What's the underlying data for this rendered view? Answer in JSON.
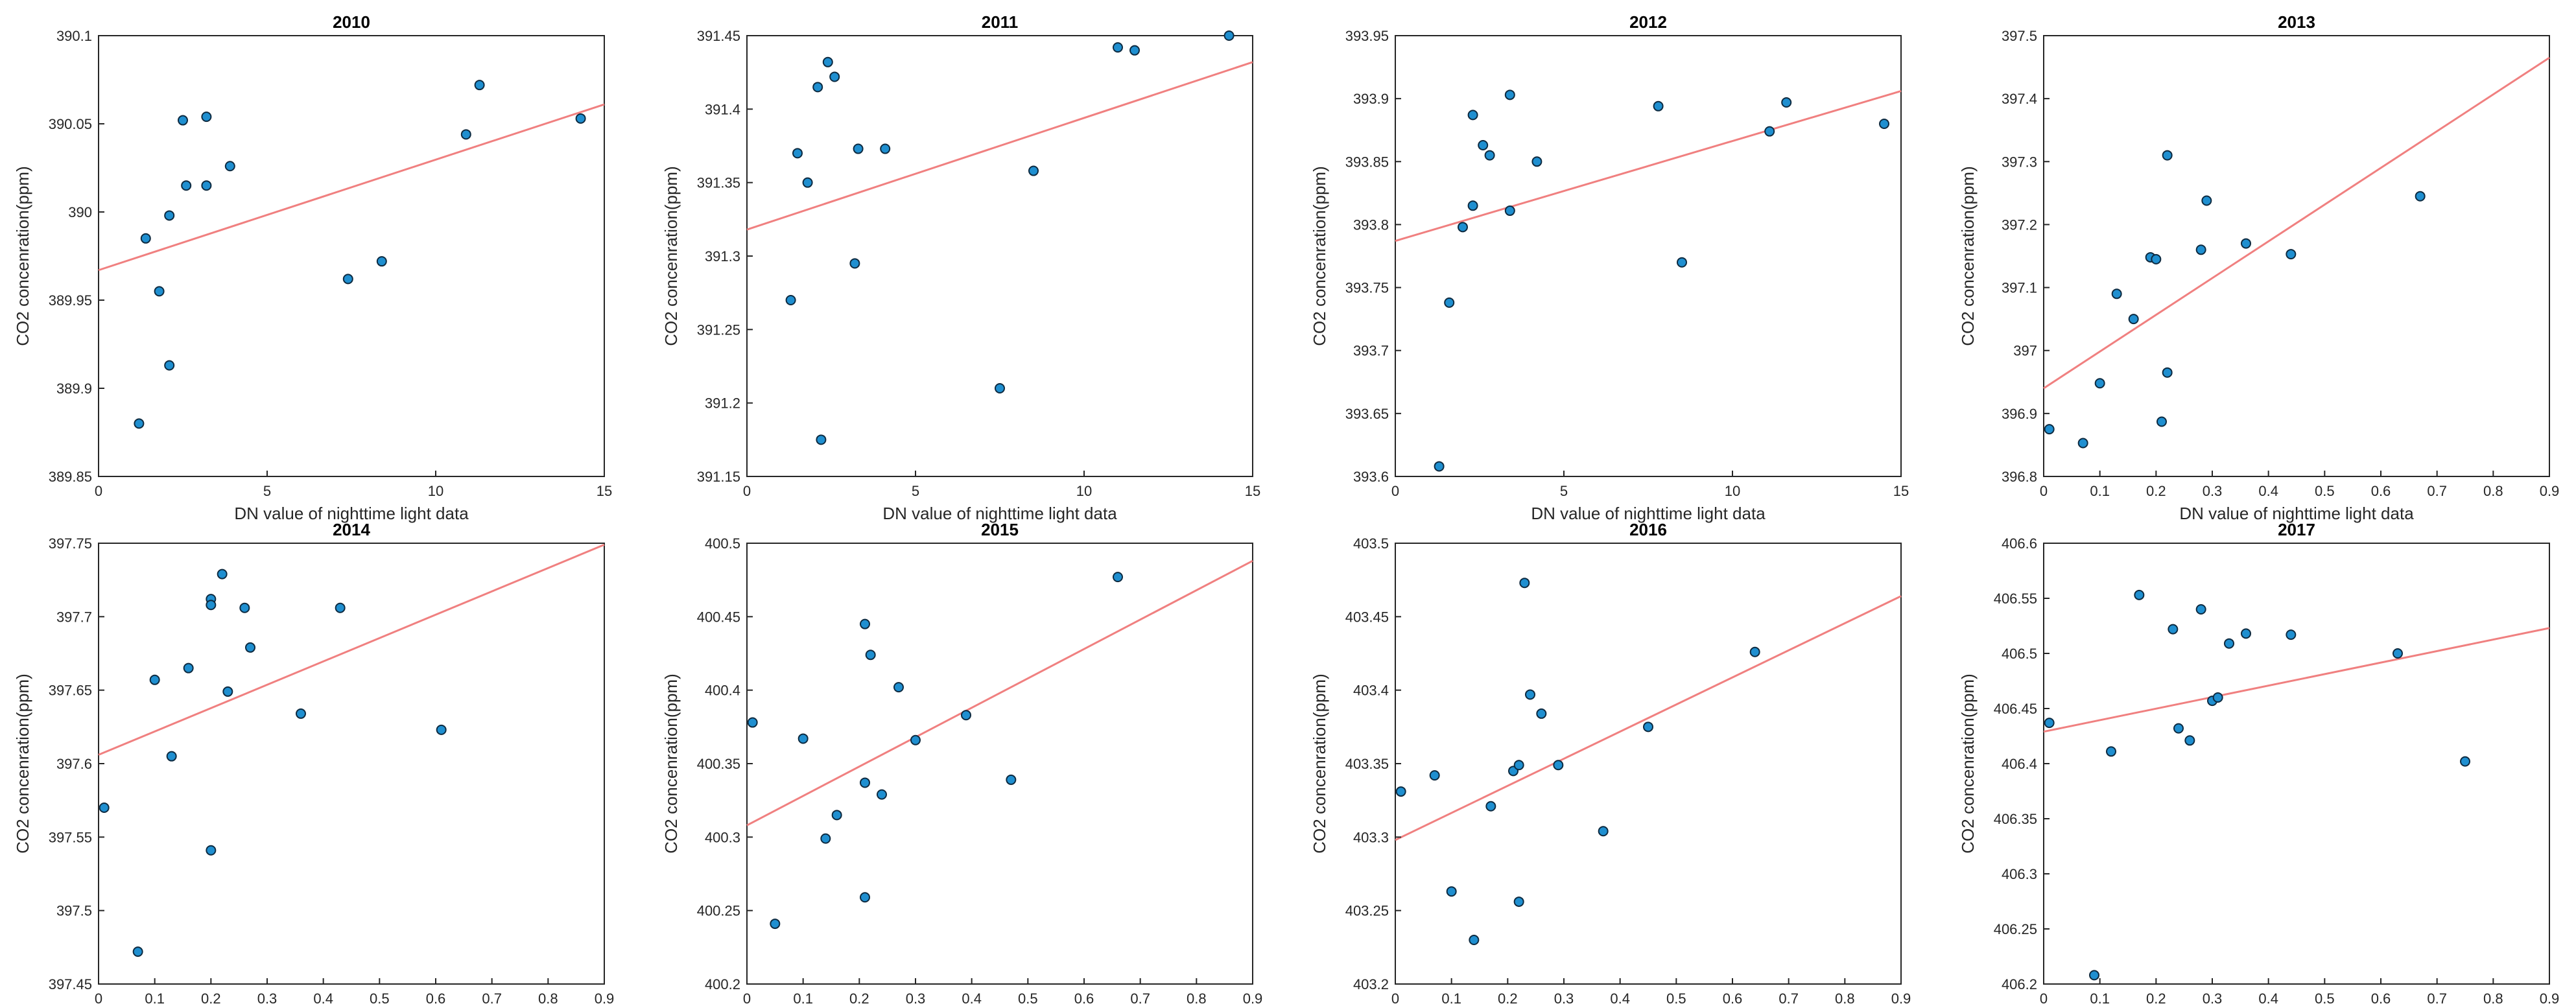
{
  "colors": {
    "point_fill": "#1f8fd0",
    "point_stroke": "#0d2a40",
    "fit_line": "#f08080",
    "axis": "#262626",
    "background": "#ffffff"
  },
  "chart_data": [
    {
      "type": "scatter",
      "title": "2010",
      "xlabel": "DN value of nighttime light data",
      "ylabel": "CO2 concenration(ppm)",
      "xlim": [
        0,
        15
      ],
      "ylim": [
        389.85,
        390.1
      ],
      "xticks": [
        0,
        5,
        10,
        15
      ],
      "xtick_labels": [
        "0",
        "5",
        "10",
        "15"
      ],
      "yticks": [
        389.85,
        389.9,
        389.95,
        390,
        390.05,
        390.1
      ],
      "ytick_labels": [
        "389.85",
        "389.9",
        "389.95",
        "390",
        "390.05",
        "390.1"
      ],
      "points": [
        [
          1.2,
          389.88
        ],
        [
          1.4,
          389.985
        ],
        [
          1.8,
          389.955
        ],
        [
          2.1,
          389.998
        ],
        [
          2.1,
          389.913
        ],
        [
          2.5,
          390.052
        ],
        [
          2.6,
          390.015
        ],
        [
          3.2,
          390.054
        ],
        [
          3.2,
          390.015
        ],
        [
          3.9,
          390.026
        ],
        [
          7.4,
          389.962
        ],
        [
          8.4,
          389.972
        ],
        [
          10.9,
          390.044
        ],
        [
          11.3,
          390.072
        ],
        [
          14.3,
          390.053
        ]
      ],
      "fit": [
        [
          0,
          389.967
        ],
        [
          15,
          390.061
        ]
      ]
    },
    {
      "type": "scatter",
      "title": "2011",
      "xlabel": "DN value of nighttime light data",
      "ylabel": "CO2 concenration(ppm)",
      "xlim": [
        0,
        15
      ],
      "ylim": [
        391.15,
        391.45
      ],
      "xticks": [
        0,
        5,
        10,
        15
      ],
      "xtick_labels": [
        "0",
        "5",
        "10",
        "15"
      ],
      "yticks": [
        391.15,
        391.2,
        391.25,
        391.3,
        391.35,
        391.4,
        391.45
      ],
      "ytick_labels": [
        "391.15",
        "391.2",
        "391.25",
        "391.3",
        "391.35",
        "391.4",
        "391.45"
      ],
      "points": [
        [
          1.3,
          391.27
        ],
        [
          1.5,
          391.37
        ],
        [
          1.8,
          391.35
        ],
        [
          2.1,
          391.415
        ],
        [
          2.2,
          391.175
        ],
        [
          2.4,
          391.432
        ],
        [
          2.6,
          391.422
        ],
        [
          3.2,
          391.295
        ],
        [
          3.3,
          391.373
        ],
        [
          4.1,
          391.373
        ],
        [
          7.5,
          391.21
        ],
        [
          8.5,
          391.358
        ],
        [
          11.0,
          391.442
        ],
        [
          11.5,
          391.44
        ],
        [
          14.3,
          391.45
        ]
      ],
      "fit": [
        [
          0,
          391.318
        ],
        [
          15,
          391.432
        ]
      ]
    },
    {
      "type": "scatter",
      "title": "2012",
      "xlabel": "DN value of nighttime light data",
      "ylabel": "CO2 concenration(ppm)",
      "xlim": [
        0,
        15
      ],
      "ylim": [
        393.6,
        393.95
      ],
      "xticks": [
        0,
        5,
        10,
        15
      ],
      "xtick_labels": [
        "0",
        "5",
        "10",
        "15"
      ],
      "yticks": [
        393.6,
        393.65,
        393.7,
        393.75,
        393.8,
        393.85,
        393.9,
        393.95
      ],
      "ytick_labels": [
        "393.6",
        "393.65",
        "393.7",
        "393.75",
        "393.8",
        "393.85",
        "393.9",
        "393.95"
      ],
      "points": [
        [
          1.3,
          393.608
        ],
        [
          1.6,
          393.738
        ],
        [
          2.0,
          393.798
        ],
        [
          2.3,
          393.815
        ],
        [
          2.3,
          393.887
        ],
        [
          2.6,
          393.863
        ],
        [
          2.8,
          393.855
        ],
        [
          3.4,
          393.903
        ],
        [
          3.4,
          393.811
        ],
        [
          4.2,
          393.85
        ],
        [
          7.8,
          393.894
        ],
        [
          8.5,
          393.77
        ],
        [
          11.1,
          393.874
        ],
        [
          11.6,
          393.897
        ],
        [
          14.5,
          393.88
        ]
      ],
      "fit": [
        [
          0,
          393.787
        ],
        [
          15,
          393.906
        ]
      ]
    },
    {
      "type": "scatter",
      "title": "2013",
      "xlabel": "DN value of nighttime light data",
      "ylabel": "CO2 concenration(ppm)",
      "xlim": [
        0,
        0.9
      ],
      "ylim": [
        396.8,
        397.5
      ],
      "xticks": [
        0,
        0.1,
        0.2,
        0.3,
        0.4,
        0.5,
        0.6,
        0.7,
        0.8,
        0.9
      ],
      "xtick_labels": [
        "0",
        "0.1",
        "0.2",
        "0.3",
        "0.4",
        "0.5",
        "0.6",
        "0.7",
        "0.8",
        "0.9"
      ],
      "yticks": [
        396.8,
        396.9,
        397,
        397.1,
        397.2,
        397.3,
        397.4,
        397.5
      ],
      "ytick_labels": [
        "396.8",
        "396.9",
        "397",
        "397.1",
        "397.2",
        "397.3",
        "397.4",
        "397.5"
      ],
      "points": [
        [
          0.01,
          396.875
        ],
        [
          0.07,
          396.853
        ],
        [
          0.1,
          396.948
        ],
        [
          0.13,
          397.09
        ],
        [
          0.16,
          397.05
        ],
        [
          0.19,
          397.148
        ],
        [
          0.2,
          397.145
        ],
        [
          0.21,
          396.887
        ],
        [
          0.22,
          396.965
        ],
        [
          0.22,
          397.31
        ],
        [
          0.28,
          397.16
        ],
        [
          0.29,
          397.238
        ],
        [
          0.36,
          397.17
        ],
        [
          0.44,
          397.153
        ],
        [
          0.67,
          397.245
        ]
      ],
      "fit": [
        [
          0,
          396.94
        ],
        [
          0.9,
          397.465
        ]
      ]
    },
    {
      "type": "scatter",
      "title": "2014",
      "xlabel": "DN value of nighttime light data",
      "ylabel": "CO2 concenration(ppm)",
      "xlim": [
        0,
        0.9
      ],
      "ylim": [
        397.45,
        397.75
      ],
      "xticks": [
        0,
        0.1,
        0.2,
        0.3,
        0.4,
        0.5,
        0.6,
        0.7,
        0.8,
        0.9
      ],
      "xtick_labels": [
        "0",
        "0.1",
        "0.2",
        "0.3",
        "0.4",
        "0.5",
        "0.6",
        "0.7",
        "0.8",
        "0.9"
      ],
      "yticks": [
        397.45,
        397.5,
        397.55,
        397.6,
        397.65,
        397.7,
        397.75
      ],
      "ytick_labels": [
        "397.45",
        "397.5",
        "397.55",
        "397.6",
        "397.65",
        "397.7",
        "397.75"
      ],
      "points": [
        [
          0.01,
          397.57
        ],
        [
          0.07,
          397.472
        ],
        [
          0.1,
          397.657
        ],
        [
          0.13,
          397.605
        ],
        [
          0.16,
          397.665
        ],
        [
          0.2,
          397.712
        ],
        [
          0.2,
          397.708
        ],
        [
          0.2,
          397.541
        ],
        [
          0.22,
          397.729
        ],
        [
          0.23,
          397.649
        ],
        [
          0.26,
          397.706
        ],
        [
          0.27,
          397.679
        ],
        [
          0.36,
          397.634
        ],
        [
          0.43,
          397.706
        ],
        [
          0.61,
          397.623
        ]
      ],
      "fit": [
        [
          0,
          397.606
        ],
        [
          0.9,
          397.749
        ]
      ]
    },
    {
      "type": "scatter",
      "title": "2015",
      "xlabel": "DN value of nighttime light data",
      "ylabel": "CO2 concenration(ppm)",
      "xlim": [
        0,
        0.9
      ],
      "ylim": [
        400.2,
        400.5
      ],
      "xticks": [
        0,
        0.1,
        0.2,
        0.3,
        0.4,
        0.5,
        0.6,
        0.7,
        0.8,
        0.9
      ],
      "xtick_labels": [
        "0",
        "0.1",
        "0.2",
        "0.3",
        "0.4",
        "0.5",
        "0.6",
        "0.7",
        "0.8",
        "0.9"
      ],
      "yticks": [
        400.2,
        400.25,
        400.3,
        400.35,
        400.4,
        400.45,
        400.5
      ],
      "ytick_labels": [
        "400.2",
        "400.25",
        "400.3",
        "400.35",
        "400.4",
        "400.45",
        "400.5"
      ],
      "points": [
        [
          0.01,
          400.378
        ],
        [
          0.05,
          400.241
        ],
        [
          0.1,
          400.367
        ],
        [
          0.14,
          400.299
        ],
        [
          0.16,
          400.315
        ],
        [
          0.21,
          400.445
        ],
        [
          0.21,
          400.337
        ],
        [
          0.21,
          400.259
        ],
        [
          0.22,
          400.424
        ],
        [
          0.24,
          400.329
        ],
        [
          0.27,
          400.402
        ],
        [
          0.3,
          400.366
        ],
        [
          0.39,
          400.383
        ],
        [
          0.47,
          400.339
        ],
        [
          0.66,
          400.477
        ]
      ],
      "fit": [
        [
          0,
          400.308
        ],
        [
          0.9,
          400.488
        ]
      ]
    },
    {
      "type": "scatter",
      "title": "2016",
      "xlabel": "DN value of nighttime light data",
      "ylabel": "CO2 concenration(ppm)",
      "xlim": [
        0,
        0.9
      ],
      "ylim": [
        403.2,
        403.5
      ],
      "xticks": [
        0,
        0.1,
        0.2,
        0.3,
        0.4,
        0.5,
        0.6,
        0.7,
        0.8,
        0.9
      ],
      "xtick_labels": [
        "0",
        "0.1",
        "0.2",
        "0.3",
        "0.4",
        "0.5",
        "0.6",
        "0.7",
        "0.8",
        "0.9"
      ],
      "yticks": [
        403.2,
        403.25,
        403.3,
        403.35,
        403.4,
        403.45,
        403.5
      ],
      "ytick_labels": [
        "403.2",
        "403.25",
        "403.3",
        "403.35",
        "403.4",
        "403.45",
        "403.5"
      ],
      "points": [
        [
          0.01,
          403.331
        ],
        [
          0.07,
          403.342
        ],
        [
          0.1,
          403.263
        ],
        [
          0.14,
          403.23
        ],
        [
          0.17,
          403.321
        ],
        [
          0.21,
          403.345
        ],
        [
          0.22,
          403.349
        ],
        [
          0.22,
          403.256
        ],
        [
          0.23,
          403.473
        ],
        [
          0.24,
          403.397
        ],
        [
          0.26,
          403.384
        ],
        [
          0.29,
          403.349
        ],
        [
          0.37,
          403.304
        ],
        [
          0.45,
          403.375
        ],
        [
          0.64,
          403.426
        ]
      ],
      "fit": [
        [
          0,
          403.298
        ],
        [
          0.9,
          403.464
        ]
      ]
    },
    {
      "type": "scatter",
      "title": "2017",
      "xlabel": "DN value of nighttime light data",
      "ylabel": "CO2 concenration(ppm)",
      "xlim": [
        0,
        0.9
      ],
      "ylim": [
        406.2,
        406.6
      ],
      "xticks": [
        0,
        0.1,
        0.2,
        0.3,
        0.4,
        0.5,
        0.6,
        0.7,
        0.8,
        0.9
      ],
      "xtick_labels": [
        "0",
        "0.1",
        "0.2",
        "0.3",
        "0.4",
        "0.5",
        "0.6",
        "0.7",
        "0.8",
        "0.9"
      ],
      "yticks": [
        406.2,
        406.25,
        406.3,
        406.35,
        406.4,
        406.45,
        406.5,
        406.55,
        406.6
      ],
      "ytick_labels": [
        "406.2",
        "406.25",
        "406.3",
        "406.35",
        "406.4",
        "406.45",
        "406.5",
        "406.55",
        "406.6"
      ],
      "points": [
        [
          0.01,
          406.437
        ],
        [
          0.09,
          406.208
        ],
        [
          0.12,
          406.411
        ],
        [
          0.17,
          406.553
        ],
        [
          0.23,
          406.522
        ],
        [
          0.24,
          406.432
        ],
        [
          0.26,
          406.421
        ],
        [
          0.28,
          406.54
        ],
        [
          0.3,
          406.457
        ],
        [
          0.31,
          406.46
        ],
        [
          0.33,
          406.509
        ],
        [
          0.36,
          406.518
        ],
        [
          0.44,
          406.517
        ],
        [
          0.63,
          406.5
        ],
        [
          0.75,
          406.402
        ]
      ],
      "fit": [
        [
          0,
          406.429
        ],
        [
          0.9,
          406.523
        ]
      ]
    }
  ]
}
